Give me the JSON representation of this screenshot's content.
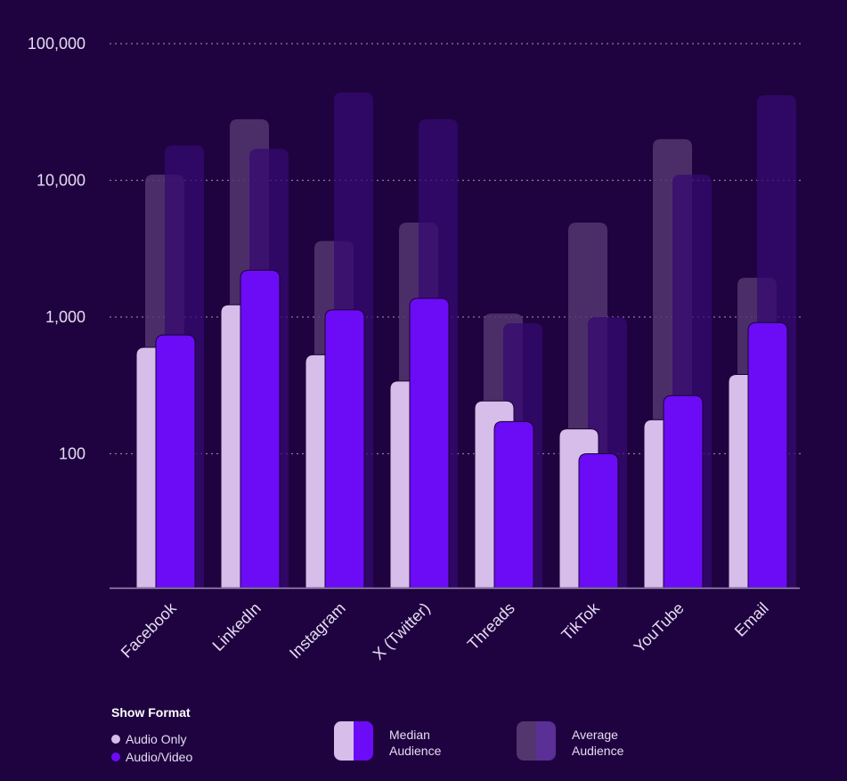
{
  "chart_data": {
    "type": "bar",
    "title": "",
    "xlabel": "",
    "ylabel": "",
    "yscale": "log",
    "ylim": [
      10,
      100000
    ],
    "yticks": [
      100,
      1000,
      10000,
      100000
    ],
    "ytick_labels": [
      "100",
      "1,000",
      "10,000",
      "100,000"
    ],
    "grid": true,
    "categories": [
      "Facebook",
      "LinkedIn",
      "Instagram",
      "X (Twitter)",
      "Threads",
      "TikTok",
      "YouTube",
      "Email"
    ],
    "series": [
      {
        "name": "Audio Only - Average Audience",
        "format": "Audio Only",
        "metric": "Average Audience",
        "values": [
          11000,
          28000,
          3600,
          4900,
          1060,
          4900,
          20000,
          1940
        ]
      },
      {
        "name": "Audio/Video - Average Audience",
        "format": "Audio/Video",
        "metric": "Average Audience",
        "values": [
          18000,
          17000,
          44000,
          28000,
          900,
          1000,
          11000,
          42000
        ]
      },
      {
        "name": "Audio Only - Median Audience",
        "format": "Audio Only",
        "metric": "Median Audience",
        "values": [
          600,
          1230,
          530,
          340,
          243,
          152,
          177,
          380
        ]
      },
      {
        "name": "Audio/Video - Median Audience",
        "format": "Audio/Video",
        "metric": "Median Audience",
        "values": [
          740,
          2200,
          1130,
          1370,
          172,
          100,
          266,
          910
        ]
      }
    ],
    "legend": {
      "title": "Show Format",
      "formats": [
        "Audio Only",
        "Audio/Video"
      ],
      "metrics": [
        "Median Audience",
        "Average Audience"
      ],
      "placement": "bottom"
    }
  },
  "colors": {
    "background": "#1f0340",
    "audio_median": "#d6bdea",
    "av_median": "#6c0bf6",
    "audio_avg": "#54366f",
    "av_avg": "#360a70",
    "grid": "#8a7aa0"
  },
  "legend_labels": {
    "title": "Show Format",
    "audio_only": "Audio Only",
    "audio_video": "Audio/Video",
    "median_line1": "Median",
    "median_line2": "Audience",
    "average_line1": "Average",
    "average_line2": "Audience"
  }
}
